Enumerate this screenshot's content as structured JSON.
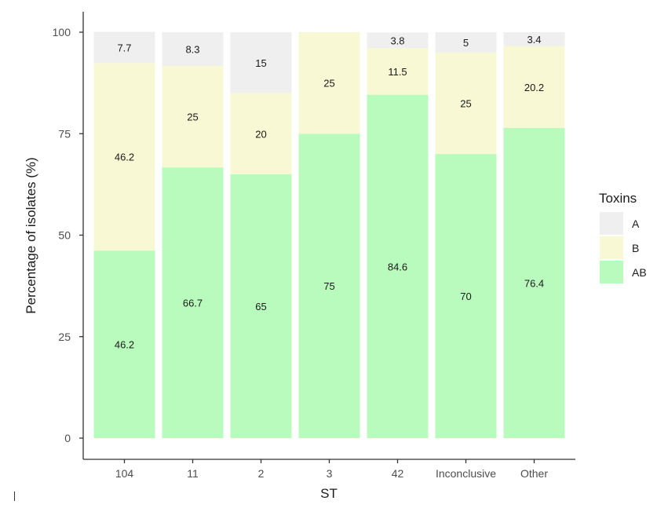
{
  "chart_data": {
    "type": "bar",
    "stacked": true,
    "xlabel": "ST",
    "ylabel": "Percentage of isolates (%)",
    "ylim": [
      0,
      100
    ],
    "yticks": [
      0,
      25,
      50,
      75,
      100
    ],
    "categories": [
      "104",
      "11",
      "2",
      "3",
      "42",
      "Inconclusive",
      "Other"
    ],
    "series": [
      {
        "name": "AB",
        "color": "#b9fbbc",
        "values": [
          46.2,
          66.7,
          65,
          75,
          84.6,
          70,
          76.4
        ],
        "labels": [
          "46.2",
          "66.7",
          "65",
          "75",
          "84.6",
          "70",
          "76.4"
        ]
      },
      {
        "name": "B",
        "color": "#f8f8d4",
        "values": [
          46.2,
          25,
          20,
          25,
          11.5,
          25,
          20.2
        ],
        "labels": [
          "46.2",
          "25",
          "20",
          "25",
          "11.5",
          "25",
          "20.2"
        ]
      },
      {
        "name": "A",
        "color": "#efefef",
        "values": [
          7.7,
          8.3,
          15,
          0,
          3.8,
          5,
          3.4
        ],
        "labels": [
          "7.7",
          "8.3",
          "15",
          "",
          "3.8",
          "5",
          "3.4"
        ]
      }
    ],
    "legend": {
      "title": "Toxins",
      "position": "right",
      "order": [
        "A",
        "B",
        "AB"
      ]
    },
    "grid": false
  }
}
